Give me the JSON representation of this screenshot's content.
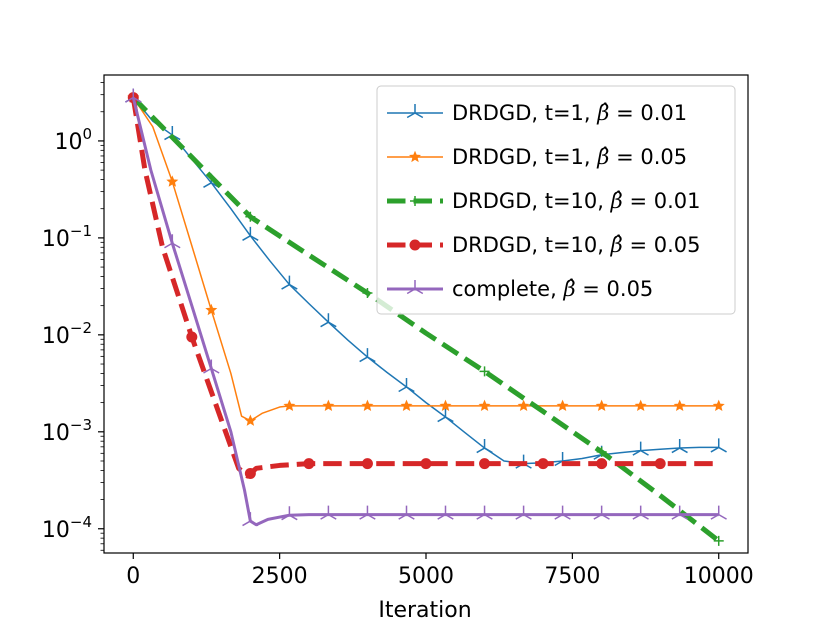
{
  "chart_data": {
    "type": "line",
    "title": "",
    "xlabel": "Iteration",
    "ylabel": "",
    "yscale": "log",
    "xlim": [
      -500,
      10500
    ],
    "ylim_log10": [
      -4.25,
      0.68
    ],
    "xticks": [
      0,
      2500,
      5000,
      7500,
      10000
    ],
    "xtick_labels": [
      "0",
      "2500",
      "5000",
      "7500",
      "10000"
    ],
    "yticks_log10": [
      0,
      -1,
      -2,
      -3,
      -4
    ],
    "ytick_labels": [
      {
        "base": "10",
        "exp": "0"
      },
      {
        "base": "10",
        "exp": "−1"
      },
      {
        "base": "10",
        "exp": "−2"
      },
      {
        "base": "10",
        "exp": "−3"
      },
      {
        "base": "10",
        "exp": "−4"
      }
    ],
    "legend_position": "top-right",
    "series": [
      {
        "name": "DRDGD, t=1, β̂ = 0.01",
        "legend": {
          "prefix": "DRDGD, t=1, ",
          "beta": "0.01"
        },
        "color": "#1f77b4",
        "style": "solid",
        "width": 1.5,
        "marker": "tri",
        "x": [
          0,
          333,
          667,
          1000,
          1333,
          1667,
          2000,
          2333,
          2667,
          3000,
          3333,
          3667,
          4000,
          4333,
          4667,
          5000,
          5333,
          5667,
          6000,
          6333,
          6667,
          7000,
          7333,
          7667,
          8000,
          8333,
          8667,
          9000,
          9333,
          9667,
          10000
        ],
        "y": [
          2.8,
          1.6,
          1.15,
          0.65,
          0.37,
          0.2,
          0.105,
          0.058,
          0.033,
          0.021,
          0.0135,
          0.0088,
          0.0059,
          0.0041,
          0.0029,
          0.002,
          0.00142,
          0.00098,
          0.00068,
          0.0005,
          0.00047,
          0.00048,
          0.0005,
          0.00053,
          0.00058,
          0.00061,
          0.00064,
          0.00066,
          0.00068,
          0.00069,
          0.00069
        ],
        "marker_every": 2
      },
      {
        "name": "DRDGD, t=1, β̂ = 0.05",
        "legend": {
          "prefix": "DRDGD, t=1, ",
          "beta": "0.05"
        },
        "color": "#ff7f0e",
        "style": "solid",
        "width": 1.5,
        "marker": "star",
        "x": [
          0,
          333,
          667,
          1000,
          1333,
          1667,
          1850,
          2000,
          2200,
          2500,
          2667,
          3000,
          3333,
          3667,
          4000,
          4333,
          4667,
          5000,
          5333,
          5667,
          6000,
          6333,
          6667,
          7000,
          7333,
          7667,
          8000,
          8333,
          8667,
          9000,
          9333,
          9667,
          10000
        ],
        "y": [
          2.8,
          1.4,
          0.38,
          0.083,
          0.018,
          0.004,
          0.00145,
          0.0013,
          0.00155,
          0.0018,
          0.00185,
          0.00185,
          0.00185,
          0.00185,
          0.00185,
          0.00185,
          0.00185,
          0.00185,
          0.00185,
          0.00185,
          0.00185,
          0.00185,
          0.00185,
          0.00185,
          0.00185,
          0.00185,
          0.00185,
          0.00185,
          0.00185,
          0.00185,
          0.00185,
          0.00185,
          0.00185
        ],
        "marker_x": [
          0,
          667,
          1333,
          2000,
          2667,
          3333,
          4000,
          4667,
          5333,
          6000,
          6667,
          7333,
          8000,
          8667,
          9333,
          10000
        ]
      },
      {
        "name": "DRDGD, t=10, β̂ = 0.01",
        "legend": {
          "prefix": "DRDGD, t=10, ",
          "beta": "0.01"
        },
        "color": "#2ca02c",
        "style": "dashed",
        "width": 5,
        "marker": "plus",
        "x": [
          0,
          1000,
          2000,
          3000,
          4000,
          5000,
          6000,
          7000,
          8000,
          9000,
          10000
        ],
        "y": [
          2.8,
          0.68,
          0.165,
          0.0665,
          0.027,
          0.0104,
          0.0042,
          0.00162,
          0.00062,
          0.00022,
          7.5e-05
        ],
        "marker_x": [
          0,
          2000,
          4000,
          6000,
          8000,
          10000
        ]
      },
      {
        "name": "DRDGD, t=10, β̂ = 0.05",
        "legend": {
          "prefix": "DRDGD, t=10, ",
          "beta": "0.05"
        },
        "color": "#d62728",
        "style": "dashed",
        "width": 5,
        "marker": "circle",
        "x": [
          0,
          200,
          500,
          1000,
          1500,
          1800,
          1950,
          2100,
          2500,
          3000,
          4000,
          5000,
          6000,
          7000,
          8000,
          9000,
          10000
        ],
        "y": [
          2.8,
          0.5,
          0.08,
          0.0095,
          0.00135,
          0.00042,
          0.00035,
          0.00042,
          0.00045,
          0.00047,
          0.00047,
          0.00047,
          0.00047,
          0.00047,
          0.00047,
          0.00047,
          0.00047
        ],
        "marker_x": [
          0,
          1000,
          2000,
          3000,
          4000,
          5000,
          6000,
          7000,
          8000,
          9000
        ]
      },
      {
        "name": "complete, β̂ = 0.05",
        "legend": {
          "prefix": "complete, ",
          "beta": "0.05"
        },
        "color": "#9467bd",
        "style": "solid",
        "width": 3,
        "marker": "tri",
        "x": [
          0,
          300,
          667,
          1000,
          1333,
          1667,
          1900,
          2000,
          2100,
          2300,
          2667,
          3000,
          4000,
          5000,
          6000,
          7000,
          8000,
          9000,
          10000
        ],
        "y": [
          2.8,
          0.5,
          0.088,
          0.02,
          0.0045,
          0.001,
          0.00025,
          0.00012,
          0.00011,
          0.000125,
          0.000138,
          0.00014,
          0.00014,
          0.00014,
          0.00014,
          0.00014,
          0.00014,
          0.00014,
          0.00014
        ],
        "marker_x": [
          0,
          667,
          1333,
          2000,
          2667,
          3333,
          4000,
          4667,
          5333,
          6000,
          6667,
          7333,
          8000,
          8667,
          9333,
          10000
        ]
      }
    ]
  }
}
